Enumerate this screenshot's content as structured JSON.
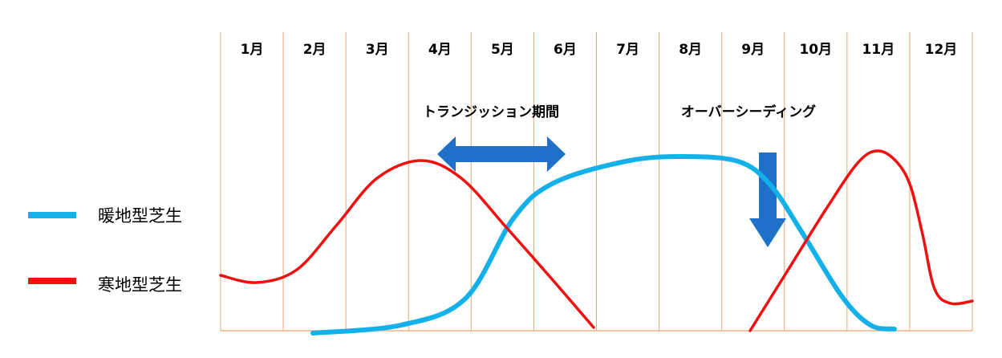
{
  "months": [
    "1月",
    "2月",
    "3月",
    "4月",
    "5月",
    "6月",
    "7月",
    "8月",
    "9月",
    "10月",
    "11月",
    "12月"
  ],
  "annotations": {
    "transition": "トランジッション期間",
    "overseeding": "オーバーシーディング"
  },
  "legend": {
    "warm": "暖地型芝生",
    "cool": "寒地型芝生"
  }
}
